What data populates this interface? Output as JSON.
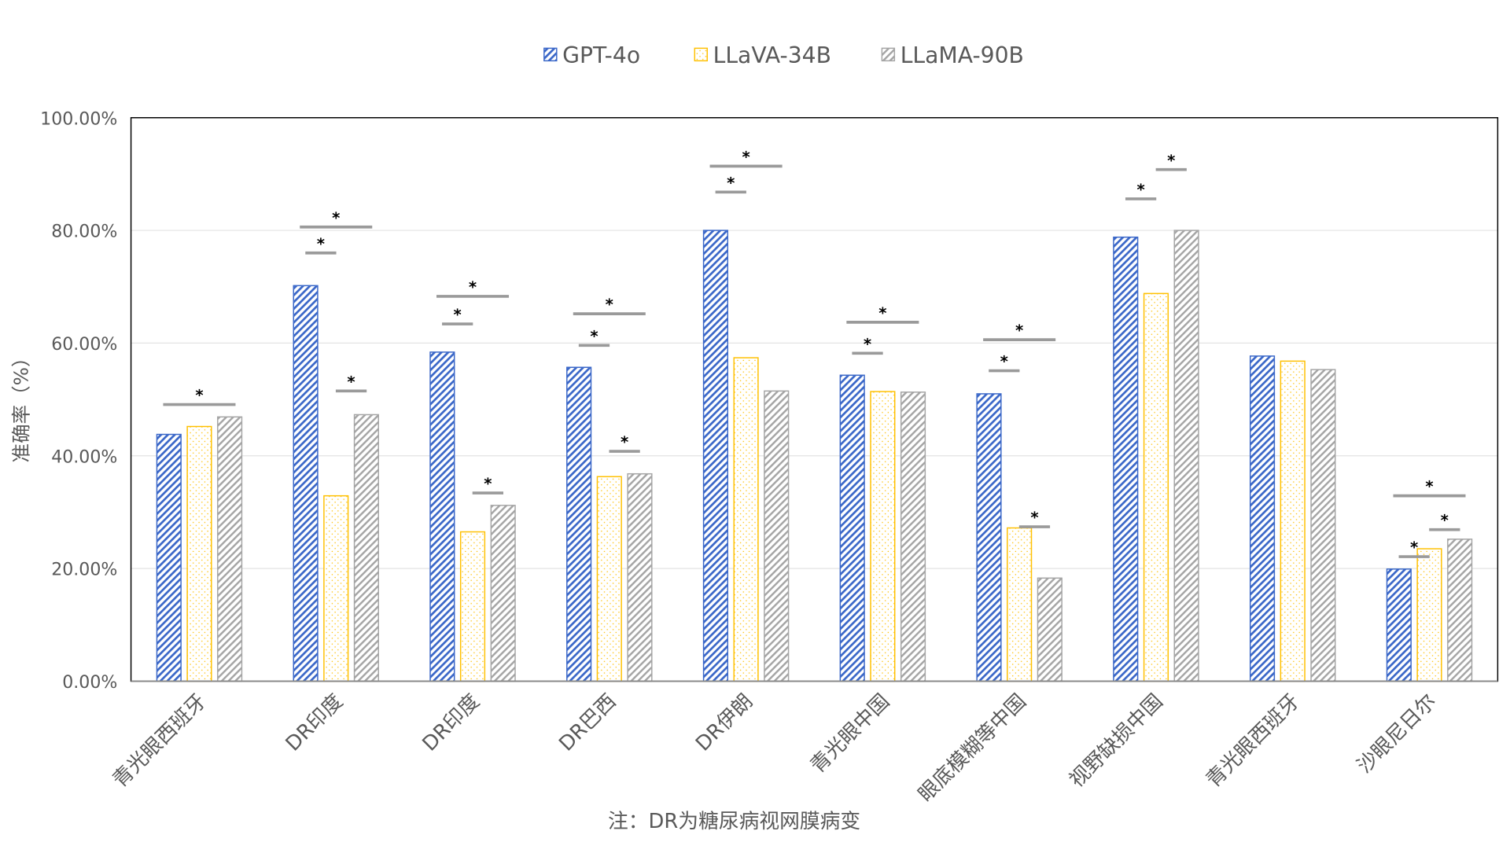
{
  "chart_data": {
    "type": "bar",
    "title": "",
    "xlabel": "",
    "ylabel": "准确率（%）",
    "footnote": "注：DR为糖尿病视网膜病变",
    "ylim": [
      0,
      100
    ],
    "yticks": [
      0,
      20,
      40,
      60,
      80,
      100
    ],
    "ytick_labels": [
      "0.00%",
      "20.00%",
      "40.00%",
      "60.00%",
      "80.00%",
      "100.00%"
    ],
    "grid": true,
    "legend_position": "top-center",
    "categories": [
      "青光眼西班牙",
      "DR印度",
      "DR印度",
      "DR巴西",
      "DR伊朗",
      "青光眼中国",
      "眼底模糊等中国",
      "视野缺损中国",
      "青光眼西班牙",
      "沙眼尼日尔"
    ],
    "series": [
      {
        "name": "GPT-4o",
        "color": "#3A67C8",
        "pattern": "hatch",
        "values": [
          43.8,
          70.2,
          58.4,
          55.7,
          80.0,
          54.3,
          51.0,
          78.8,
          57.7,
          19.9
        ]
      },
      {
        "name": "LLaVA-34B",
        "color": "#FFC000",
        "pattern": "dots",
        "values": [
          45.2,
          32.9,
          26.5,
          36.3,
          57.4,
          51.4,
          27.2,
          68.8,
          56.8,
          23.5
        ]
      },
      {
        "name": "LLaMA-90B",
        "color": "#A5A5A5",
        "pattern": "hatch",
        "values": [
          46.9,
          47.3,
          31.2,
          36.8,
          51.5,
          51.3,
          18.3,
          80.0,
          55.3,
          25.2
        ]
      }
    ],
    "significance_marker": "*",
    "significance": [
      {
        "category": 0,
        "pair": [
          0,
          2
        ],
        "level": 49.1
      },
      {
        "category": 1,
        "pair": [
          0,
          1
        ],
        "level": 76.0
      },
      {
        "category": 1,
        "pair": [
          0,
          2
        ],
        "level": 80.6
      },
      {
        "category": 1,
        "pair": [
          1,
          2
        ],
        "level": 51.5
      },
      {
        "category": 2,
        "pair": [
          0,
          1
        ],
        "level": 63.4
      },
      {
        "category": 2,
        "pair": [
          0,
          2
        ],
        "level": 68.3
      },
      {
        "category": 2,
        "pair": [
          1,
          2
        ],
        "level": 33.4
      },
      {
        "category": 3,
        "pair": [
          0,
          1
        ],
        "level": 59.6
      },
      {
        "category": 3,
        "pair": [
          0,
          2
        ],
        "level": 65.2
      },
      {
        "category": 3,
        "pair": [
          1,
          2
        ],
        "level": 40.8
      },
      {
        "category": 4,
        "pair": [
          0,
          1
        ],
        "level": 86.8
      },
      {
        "category": 4,
        "pair": [
          0,
          2
        ],
        "level": 91.4
      },
      {
        "category": 5,
        "pair": [
          0,
          1
        ],
        "level": 58.2
      },
      {
        "category": 5,
        "pair": [
          0,
          2
        ],
        "level": 63.7
      },
      {
        "category": 6,
        "pair": [
          0,
          1
        ],
        "level": 55.1
      },
      {
        "category": 6,
        "pair": [
          0,
          2
        ],
        "level": 60.6
      },
      {
        "category": 6,
        "pair": [
          1,
          2
        ],
        "level": 27.4
      },
      {
        "category": 7,
        "pair": [
          0,
          1
        ],
        "level": 85.6
      },
      {
        "category": 7,
        "pair": [
          1,
          2
        ],
        "level": 90.8
      },
      {
        "category": 9,
        "pair": [
          0,
          1
        ],
        "level": 22.1
      },
      {
        "category": 9,
        "pair": [
          0,
          2
        ],
        "level": 32.9
      },
      {
        "category": 9,
        "pair": [
          1,
          2
        ],
        "level": 26.9
      }
    ]
  }
}
